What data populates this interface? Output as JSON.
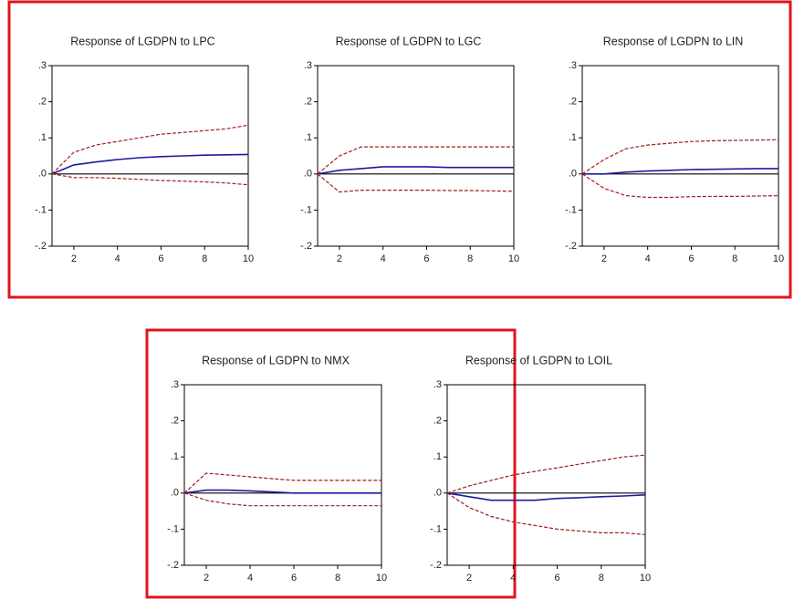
{
  "chart_data": [
    {
      "type": "line",
      "title": "Response of LGDPN to LPC",
      "x": [
        1,
        2,
        3,
        4,
        5,
        6,
        7,
        8,
        9,
        10
      ],
      "xlim": [
        1,
        10
      ],
      "xticks": [
        2,
        4,
        6,
        8,
        10
      ],
      "ylim": [
        -0.2,
        0.3
      ],
      "yticks": [
        {
          "value": -0.2,
          "label": "-.2"
        },
        {
          "value": -0.1,
          "label": "-.1"
        },
        {
          "value": 0,
          "label": ".0"
        },
        {
          "value": 0.1,
          "label": ".1"
        },
        {
          "value": 0.2,
          "label": ".2"
        },
        {
          "value": 0.3,
          "label": ".3"
        }
      ],
      "series": [
        {
          "color": "#1c1ca0",
          "style": "solid",
          "values": [
            0,
            0.025,
            0.033,
            0.04,
            0.045,
            0.048,
            0.05,
            0.052,
            0.053,
            0.054
          ]
        },
        {
          "color": "#a01c1c",
          "style": "dashed",
          "values": [
            0,
            0.06,
            0.08,
            0.09,
            0.1,
            0.11,
            0.115,
            0.12,
            0.125,
            0.135
          ]
        },
        {
          "color": "#a01c1c",
          "style": "dashed",
          "values": [
            0,
            -0.01,
            -0.01,
            -0.012,
            -0.015,
            -0.018,
            -0.02,
            -0.022,
            -0.025,
            -0.03
          ]
        }
      ]
    },
    {
      "type": "line",
      "title": "Response of LGDPN to LGC",
      "x": [
        1,
        2,
        3,
        4,
        5,
        6,
        7,
        8,
        9,
        10
      ],
      "xlim": [
        1,
        10
      ],
      "xticks": [
        2,
        4,
        6,
        8,
        10
      ],
      "ylim": [
        -0.2,
        0.3
      ],
      "yticks": [
        {
          "value": -0.2,
          "label": "-.2"
        },
        {
          "value": -0.1,
          "label": "-.1"
        },
        {
          "value": 0,
          "label": ".0"
        },
        {
          "value": 0.1,
          "label": ".1"
        },
        {
          "value": 0.2,
          "label": ".2"
        },
        {
          "value": 0.3,
          "label": ".3"
        }
      ],
      "series": [
        {
          "color": "#1c1ca0",
          "style": "solid",
          "values": [
            0,
            0.01,
            0.015,
            0.02,
            0.02,
            0.02,
            0.018,
            0.018,
            0.018,
            0.018
          ]
        },
        {
          "color": "#a01c1c",
          "style": "dashed",
          "values": [
            0,
            0.05,
            0.075,
            0.075,
            0.075,
            0.075,
            0.075,
            0.075,
            0.075,
            0.075
          ]
        },
        {
          "color": "#a01c1c",
          "style": "dashed",
          "values": [
            0,
            -0.05,
            -0.045,
            -0.045,
            -0.045,
            -0.045,
            -0.046,
            -0.046,
            -0.047,
            -0.048
          ]
        }
      ]
    },
    {
      "type": "line",
      "title": "Response of LGDPN to LIN",
      "x": [
        1,
        2,
        3,
        4,
        5,
        6,
        7,
        8,
        9,
        10
      ],
      "xlim": [
        1,
        10
      ],
      "xticks": [
        2,
        4,
        6,
        8,
        10
      ],
      "ylim": [
        -0.2,
        0.3
      ],
      "yticks": [
        {
          "value": -0.2,
          "label": "-.2"
        },
        {
          "value": -0.1,
          "label": "-.1"
        },
        {
          "value": 0,
          "label": ".0"
        },
        {
          "value": 0.1,
          "label": ".1"
        },
        {
          "value": 0.2,
          "label": ".2"
        },
        {
          "value": 0.3,
          "label": ".3"
        }
      ],
      "series": [
        {
          "color": "#1c1ca0",
          "style": "solid",
          "values": [
            0,
            0,
            0.005,
            0.008,
            0.01,
            0.012,
            0.013,
            0.014,
            0.015,
            0.015
          ]
        },
        {
          "color": "#a01c1c",
          "style": "dashed",
          "values": [
            0,
            0.04,
            0.07,
            0.08,
            0.085,
            0.09,
            0.092,
            0.093,
            0.094,
            0.095
          ]
        },
        {
          "color": "#a01c1c",
          "style": "dashed",
          "values": [
            0,
            -0.04,
            -0.06,
            -0.065,
            -0.065,
            -0.063,
            -0.062,
            -0.062,
            -0.061,
            -0.06
          ]
        }
      ]
    },
    {
      "type": "line",
      "title": "Response of LGDPN to NMX",
      "x": [
        1,
        2,
        3,
        4,
        5,
        6,
        7,
        8,
        9,
        10
      ],
      "xlim": [
        1,
        10
      ],
      "xticks": [
        2,
        4,
        6,
        8,
        10
      ],
      "ylim": [
        -0.2,
        0.3
      ],
      "yticks": [
        {
          "value": -0.2,
          "label": "-.2"
        },
        {
          "value": -0.1,
          "label": "-.1"
        },
        {
          "value": 0,
          "label": ".0"
        },
        {
          "value": 0.1,
          "label": ".1"
        },
        {
          "value": 0.2,
          "label": ".2"
        },
        {
          "value": 0.3,
          "label": ".3"
        }
      ],
      "series": [
        {
          "color": "#1c1ca0",
          "style": "solid",
          "values": [
            0,
            0.008,
            0.008,
            0.006,
            0.003,
            0,
            0,
            0,
            0,
            0
          ]
        },
        {
          "color": "#a01c1c",
          "style": "dashed",
          "values": [
            0,
            0.055,
            0.05,
            0.045,
            0.04,
            0.035,
            0.035,
            0.035,
            0.035,
            0.035
          ]
        },
        {
          "color": "#a01c1c",
          "style": "dashed",
          "values": [
            0,
            -0.02,
            -0.03,
            -0.035,
            -0.035,
            -0.035,
            -0.035,
            -0.035,
            -0.035,
            -0.035
          ]
        }
      ]
    },
    {
      "type": "line",
      "title": "Response of LGDPN to LOIL",
      "x": [
        1,
        2,
        3,
        4,
        5,
        6,
        7,
        8,
        9,
        10
      ],
      "xlim": [
        1,
        10
      ],
      "xticks": [
        2,
        4,
        6,
        8,
        10
      ],
      "ylim": [
        -0.2,
        0.3
      ],
      "yticks": [
        {
          "value": -0.2,
          "label": "-.2"
        },
        {
          "value": -0.1,
          "label": "-.1"
        },
        {
          "value": 0,
          "label": ".0"
        },
        {
          "value": 0.1,
          "label": ".1"
        },
        {
          "value": 0.2,
          "label": ".2"
        },
        {
          "value": 0.3,
          "label": ".3"
        }
      ],
      "series": [
        {
          "color": "#1c1ca0",
          "style": "solid",
          "values": [
            0,
            -0.01,
            -0.02,
            -0.02,
            -0.02,
            -0.015,
            -0.013,
            -0.01,
            -0.008,
            -0.005
          ]
        },
        {
          "color": "#a01c1c",
          "style": "dashed",
          "values": [
            0,
            0.02,
            0.035,
            0.05,
            0.06,
            0.07,
            0.08,
            0.09,
            0.1,
            0.105
          ]
        },
        {
          "color": "#a01c1c",
          "style": "dashed",
          "values": [
            0,
            -0.04,
            -0.065,
            -0.08,
            -0.09,
            -0.1,
            -0.105,
            -0.11,
            -0.11,
            -0.115
          ]
        }
      ]
    }
  ]
}
